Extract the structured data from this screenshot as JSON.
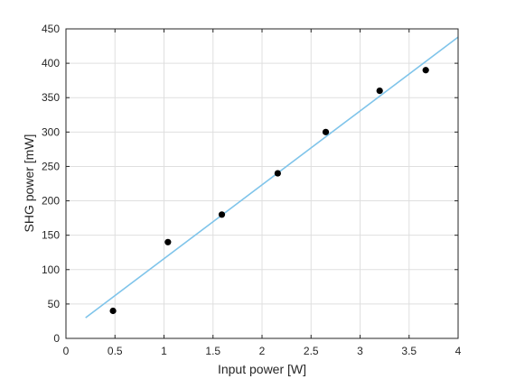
{
  "chart_data": {
    "type": "scatter",
    "xlabel": "Input power [W]",
    "ylabel": "SHG power [mW]",
    "xlim": [
      0,
      4
    ],
    "ylim": [
      0,
      450
    ],
    "x_ticks": [
      0,
      0.5,
      1,
      1.5,
      2,
      2.5,
      3,
      3.5,
      4
    ],
    "x_tick_labels": [
      "0",
      "0.5",
      "1",
      "1.5",
      "2",
      "2.5",
      "3",
      "3.5",
      "4"
    ],
    "y_ticks": [
      0,
      50,
      100,
      150,
      200,
      250,
      300,
      350,
      400,
      450
    ],
    "y_tick_labels": [
      "0",
      "50",
      "100",
      "150",
      "200",
      "250",
      "300",
      "350",
      "400",
      "450"
    ],
    "grid": true,
    "series": [
      {
        "type": "scatter",
        "color": "#000000",
        "x": [
          0.48,
          1.04,
          1.59,
          2.16,
          2.65,
          3.2,
          3.67
        ],
        "y": [
          40,
          140,
          180,
          240,
          300,
          360,
          390
        ]
      },
      {
        "type": "line",
        "color": "#7fc4ea",
        "x": [
          0.2,
          4.0
        ],
        "y": [
          30,
          438
        ]
      }
    ]
  }
}
